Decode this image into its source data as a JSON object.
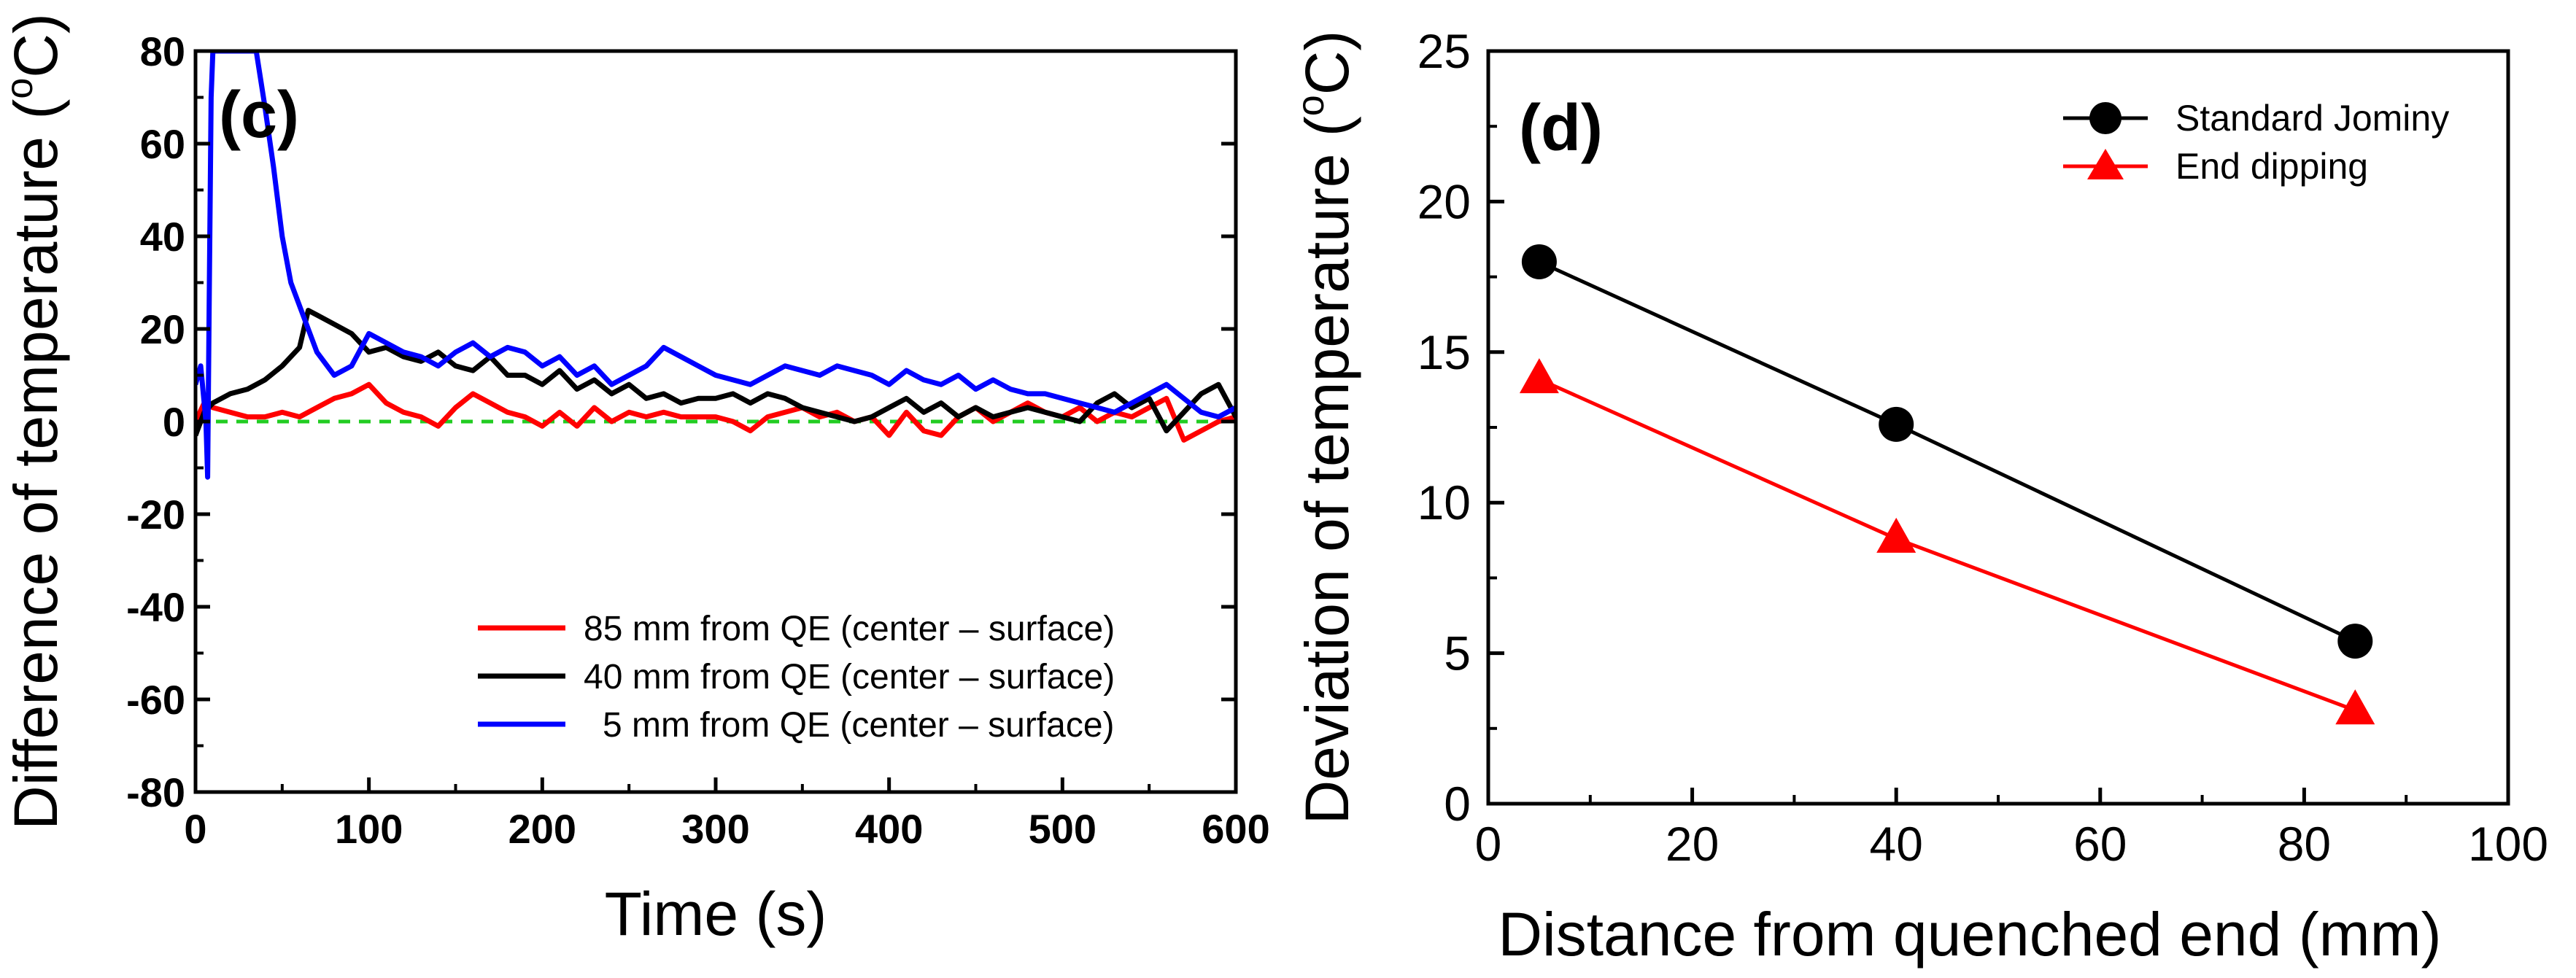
{
  "chart_data": [
    {
      "type": "line",
      "panel_label": "(c)",
      "title": "",
      "xlabel": "Time (s)",
      "ylabel": "Difference of temperature (",
      "ylabel_unit": "oC",
      "ylabel_unit_sup": "o",
      "ylabel_unit_base": "C",
      "ylabel_close": ")",
      "xlim": [
        0,
        600
      ],
      "ylim": [
        -80,
        80
      ],
      "xticks": [
        0,
        100,
        200,
        300,
        400,
        500,
        600
      ],
      "yticks": [
        80,
        60,
        40,
        20,
        0,
        -20,
        -40,
        -60,
        -80
      ],
      "xtick_labels": [
        "0",
        "100",
        "200",
        "300",
        "400",
        "500",
        "600"
      ],
      "ytick_labels": [
        "80",
        "60",
        "40",
        "20",
        "0",
        "-20",
        "-40",
        "-60",
        "-80"
      ],
      "reference_line": {
        "y": 0,
        "color": "#22cc22",
        "style": "dashed"
      },
      "legend_position": "bottom-right",
      "series": [
        {
          "name": "85 mm from QE (center – surface)",
          "color": "#ff0000",
          "x": [
            0,
            5,
            10,
            20,
            30,
            40,
            50,
            60,
            70,
            80,
            90,
            100,
            110,
            120,
            130,
            140,
            150,
            160,
            170,
            180,
            190,
            200,
            210,
            220,
            230,
            240,
            250,
            260,
            270,
            280,
            290,
            300,
            310,
            320,
            330,
            340,
            350,
            360,
            370,
            380,
            390,
            400,
            410,
            420,
            430,
            440,
            450,
            460,
            470,
            480,
            490,
            500,
            510,
            520,
            530,
            540,
            550,
            560,
            570,
            580,
            590,
            600
          ],
          "y": [
            0,
            4,
            3,
            2,
            1,
            1,
            2,
            1,
            3,
            5,
            6,
            8,
            4,
            2,
            1,
            -1,
            3,
            6,
            4,
            2,
            1,
            -1,
            2,
            -1,
            3,
            0,
            2,
            1,
            2,
            1,
            1,
            1,
            0,
            -2,
            1,
            2,
            3,
            1,
            2,
            0,
            1,
            -3,
            2,
            -2,
            -3,
            1,
            3,
            0,
            2,
            4,
            2,
            1,
            3,
            0,
            2,
            1,
            3,
            5,
            -4,
            -2,
            0,
            1
          ]
        },
        {
          "name": "40 mm from QE (center – surface)",
          "color": "#000000",
          "x": [
            0,
            5,
            10,
            20,
            30,
            40,
            50,
            60,
            65,
            70,
            80,
            90,
            100,
            110,
            120,
            130,
            140,
            150,
            160,
            170,
            180,
            190,
            200,
            210,
            220,
            230,
            240,
            250,
            260,
            270,
            280,
            290,
            300,
            310,
            320,
            330,
            340,
            350,
            360,
            370,
            380,
            390,
            400,
            410,
            420,
            430,
            440,
            450,
            460,
            470,
            480,
            490,
            500,
            510,
            520,
            530,
            540,
            550,
            560,
            570,
            580,
            590,
            600
          ],
          "y": [
            -3,
            2,
            4,
            6,
            7,
            9,
            12,
            16,
            24,
            23,
            21,
            19,
            15,
            16,
            14,
            13,
            15,
            12,
            11,
            14,
            10,
            10,
            8,
            11,
            7,
            9,
            6,
            8,
            5,
            6,
            4,
            5,
            5,
            6,
            4,
            6,
            5,
            3,
            2,
            1,
            0,
            1,
            3,
            5,
            2,
            4,
            1,
            3,
            1,
            2,
            3,
            2,
            1,
            0,
            4,
            6,
            3,
            5,
            -2,
            2,
            6,
            8,
            1
          ]
        },
        {
          "name": "5 mm from QE (center – surface)",
          "color": "#0000ff",
          "x": [
            0,
            3,
            6,
            7,
            8,
            9,
            10,
            12,
            15,
            20,
            25,
            30,
            35,
            40,
            45,
            50,
            55,
            60,
            70,
            80,
            90,
            100,
            110,
            120,
            130,
            140,
            150,
            160,
            170,
            180,
            190,
            200,
            210,
            220,
            230,
            240,
            250,
            260,
            270,
            280,
            290,
            300,
            310,
            320,
            330,
            340,
            350,
            360,
            370,
            380,
            390,
            400,
            410,
            420,
            430,
            440,
            450,
            460,
            470,
            480,
            490,
            500,
            510,
            520,
            530,
            540,
            550,
            560,
            570,
            580,
            590,
            600
          ],
          "y": [
            8,
            12,
            0,
            -12,
            30,
            70,
            80,
            80,
            80,
            80,
            80,
            80,
            80,
            68,
            55,
            40,
            30,
            25,
            15,
            10,
            12,
            19,
            17,
            15,
            14,
            12,
            15,
            17,
            14,
            16,
            15,
            12,
            14,
            10,
            12,
            8,
            10,
            12,
            16,
            14,
            12,
            10,
            9,
            8,
            10,
            12,
            11,
            10,
            12,
            11,
            10,
            8,
            11,
            9,
            8,
            10,
            7,
            9,
            7,
            6,
            6,
            5,
            4,
            3,
            2,
            4,
            6,
            8,
            5,
            2,
            1,
            3
          ]
        }
      ]
    },
    {
      "type": "line",
      "panel_label": "(d)",
      "title": "",
      "xlabel": "Distance from quenched end (mm)",
      "ylabel": "Deviation of temperature (",
      "ylabel_unit": "oC",
      "ylabel_unit_sup": "o",
      "ylabel_unit_base": "C",
      "ylabel_close": ")",
      "xlim": [
        0,
        100
      ],
      "ylim": [
        0,
        25
      ],
      "xticks": [
        0,
        20,
        40,
        60,
        80,
        100
      ],
      "yticks": [
        0,
        5,
        10,
        15,
        20,
        25
      ],
      "xtick_labels": [
        "0",
        "20",
        "40",
        "60",
        "80",
        "100"
      ],
      "ytick_labels": [
        "0",
        "5",
        "10",
        "15",
        "20",
        "25"
      ],
      "legend_position": "top-right",
      "series": [
        {
          "name": "Standard Jominy",
          "color": "#000000",
          "marker": "circle",
          "x": [
            5,
            40,
            85
          ],
          "y": [
            18.0,
            12.6,
            5.4
          ]
        },
        {
          "name": "End dipping",
          "color": "#ff0000",
          "marker": "triangle",
          "x": [
            5,
            40,
            85
          ],
          "y": [
            14.1,
            8.8,
            3.1
          ]
        }
      ]
    }
  ]
}
